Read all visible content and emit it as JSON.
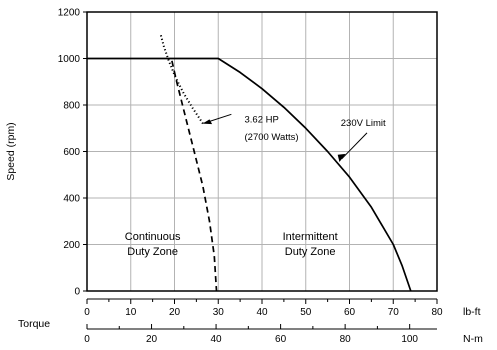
{
  "chart_data": {
    "type": "line",
    "title": "",
    "ylabel": "Speed (rpm)",
    "torque_label": "Torque",
    "ylim": [
      0,
      1200
    ],
    "yticks": [
      0,
      200,
      400,
      600,
      800,
      1000,
      1200
    ],
    "x_lbft": {
      "unit": "lb-ft",
      "range": [
        0,
        80
      ],
      "ticks": [
        0,
        10,
        20,
        30,
        40,
        50,
        60,
        70,
        80
      ]
    },
    "x_nm": {
      "unit": "N-m",
      "range": [
        0,
        108.47
      ],
      "ticks": [
        0,
        20,
        40,
        60,
        80,
        100
      ]
    },
    "grid": true,
    "series": [
      {
        "name": "230V Limit",
        "style": "solid",
        "x": [
          0,
          30,
          35,
          40,
          45,
          50,
          55,
          60,
          65,
          70,
          72,
          74
        ],
        "y": [
          1000,
          1000,
          940,
          870,
          790,
          700,
          600,
          490,
          360,
          200,
          110,
          0
        ]
      },
      {
        "name": "",
        "style": "dashed",
        "x": [
          19.4,
          20.5,
          22.5,
          24.5,
          26.5,
          28,
          29.1,
          29.6
        ],
        "y": [
          990,
          900,
          750,
          600,
          450,
          300,
          150,
          0
        ]
      },
      {
        "name": "3.62 HP (2700 Watts)",
        "style": "dotted",
        "x": [
          16.9,
          17.6,
          18.7,
          20.2,
          22.1,
          24.2,
          26.5
        ],
        "y": [
          1100,
          1050,
          990,
          920,
          850,
          785,
          720
        ]
      }
    ],
    "annotations": [
      {
        "text": "3.62 HP",
        "x": 36,
        "y": 725
      },
      {
        "text": "(2700 Watts)",
        "x": 36,
        "y": 650
      },
      {
        "text": "230V Limit",
        "x": 58,
        "y": 710
      }
    ],
    "zones": [
      {
        "line1": "Continuous",
        "line2": "Duty Zone",
        "x": 15,
        "y": 220
      },
      {
        "line1": "Intermittent",
        "line2": "Duty Zone",
        "x": 51,
        "y": 220
      }
    ]
  }
}
